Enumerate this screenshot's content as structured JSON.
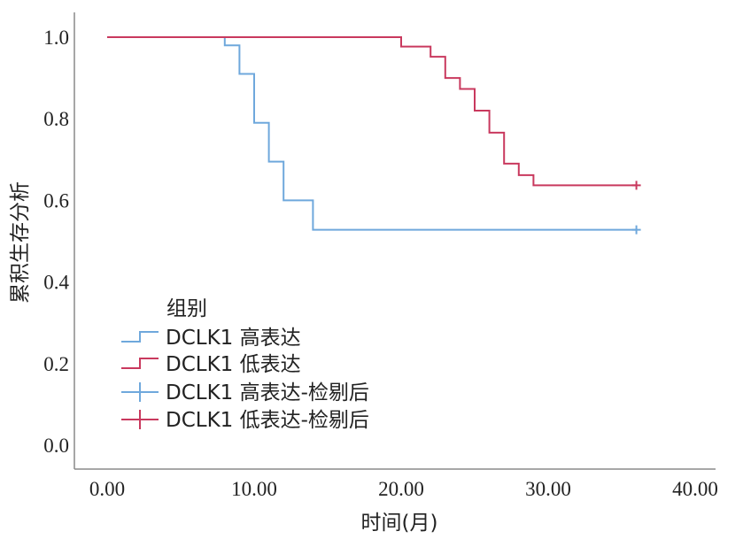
{
  "chart_data": {
    "type": "line",
    "subtype": "kaplan-meier-step",
    "xlabel": "时间(月)",
    "ylabel": "累积生存分析",
    "xlim": [
      0,
      40
    ],
    "ylim": [
      0,
      1.0
    ],
    "x_ticks": [
      "0.00",
      "10.00",
      "20.00",
      "30.00",
      "40.00"
    ],
    "y_ticks": [
      "0.0",
      "0.2",
      "0.4",
      "0.6",
      "0.8",
      "1.0"
    ],
    "grid": false,
    "legend": {
      "title": "组别",
      "position": "bottom-left",
      "entries": [
        {
          "label": "DCLK1 高表达",
          "series": 0,
          "marker": "step"
        },
        {
          "label": "DCLK1 低表达",
          "series": 1,
          "marker": "step"
        },
        {
          "label": "DCLK1 高表达-检剔后",
          "series": 0,
          "marker": "plus"
        },
        {
          "label": "DCLK1 低表达-检剔后",
          "series": 1,
          "marker": "plus"
        }
      ]
    },
    "series": [
      {
        "name": "DCLK1 高表达",
        "color": "#6fa8dc",
        "steps": [
          [
            0,
            1.0
          ],
          [
            8,
            0.98
          ],
          [
            9,
            0.91
          ],
          [
            10,
            0.79
          ],
          [
            11,
            0.695
          ],
          [
            12,
            0.6
          ],
          [
            14,
            0.528
          ],
          [
            36,
            0.528
          ]
        ],
        "censored": [
          [
            36,
            0.528
          ]
        ]
      },
      {
        "name": "DCLK1 低表达",
        "color": "#c9395e",
        "steps": [
          [
            0,
            1.0
          ],
          [
            20,
            0.977
          ],
          [
            22,
            0.952
          ],
          [
            23,
            0.9
          ],
          [
            24,
            0.873
          ],
          [
            25,
            0.82
          ],
          [
            26,
            0.766
          ],
          [
            27,
            0.69
          ],
          [
            28,
            0.662
          ],
          [
            29,
            0.637
          ],
          [
            36,
            0.637
          ]
        ],
        "censored": [
          [
            36,
            0.637
          ]
        ]
      }
    ]
  }
}
